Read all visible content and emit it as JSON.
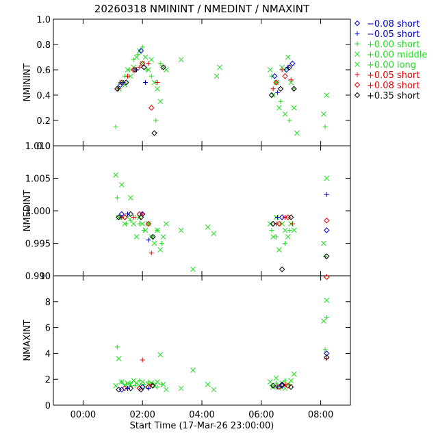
{
  "chart_data": {
    "type": "scatter",
    "title": "20260318  NMININT / NMEDINT / NMAXINT",
    "xlabel": "Start Time (17-Mar-26 23:00:00)",
    "x_unit": "hours after 17-Mar-26 23:00:00",
    "xlim": [
      0,
      10
    ],
    "xticks": [
      {
        "v": 1,
        "label": "00:00"
      },
      {
        "v": 3,
        "label": "02:00"
      },
      {
        "v": 5,
        "label": "04:00"
      },
      {
        "v": 7,
        "label": "06:00"
      },
      {
        "v": 9,
        "label": "08:00"
      }
    ],
    "legend": {
      "position": "top-right",
      "entries": [
        {
          "marker": "diamond",
          "label": "−0.08 short",
          "color": "#0000cc"
        },
        {
          "marker": "plus",
          "label": "−0.05 short",
          "color": "#0000cc"
        },
        {
          "marker": "plus",
          "label": "+0.00 short",
          "color": "#22dd22"
        },
        {
          "marker": "cross",
          "label": "+0.00 middle",
          "color": "#22dd22"
        },
        {
          "marker": "cross",
          "label": "+0.00 long",
          "color": "#22dd22"
        },
        {
          "marker": "plus",
          "label": "+0.05 short",
          "color": "#ee0000"
        },
        {
          "marker": "diamond",
          "label": "+0.08 short",
          "color": "#ee0000"
        },
        {
          "marker": "diamond",
          "label": "+0.35 short",
          "color": "#000000"
        }
      ]
    },
    "panels": [
      {
        "ylabel": "NMININT",
        "ylim": [
          0,
          1.0
        ],
        "yticks": [
          "0.0",
          "0.2",
          "0.4",
          "0.6",
          "0.8",
          "1.0"
        ],
        "ytick_values": [
          0,
          0.2,
          0.4,
          0.6,
          0.8,
          1.0
        ],
        "series": [
          {
            "label_ref": 4,
            "marker": "cross",
            "color": "#22dd22",
            "x": [
              2.2,
              2.3,
              2.4,
              2.5,
              2.6,
              2.7,
              2.8,
              2.9,
              3.0,
              3.1,
              3.2,
              3.3,
              3.4,
              3.5,
              3.6,
              3.7,
              3.8,
              4.3,
              5.5,
              5.6,
              7.3,
              7.4,
              7.5,
              7.6,
              7.7,
              7.8,
              7.9,
              8.0,
              8.1,
              8.2,
              9.1,
              9.2
            ],
            "y": [
              0.45,
              0.5,
              0.48,
              0.6,
              0.55,
              0.62,
              0.7,
              0.75,
              0.65,
              0.7,
              0.6,
              0.68,
              0.5,
              0.45,
              0.35,
              0.62,
              0.6,
              0.68,
              0.55,
              0.62,
              0.6,
              0.4,
              0.5,
              0.3,
              0.62,
              0.25,
              0.7,
              0.5,
              0.3,
              0.1,
              0.25,
              0.4
            ]
          },
          {
            "label_ref": 2,
            "marker": "plus",
            "color": "#22dd22",
            "x": [
              2.1,
              2.25,
              2.4,
              2.55,
              2.7,
              2.85,
              3.0,
              3.15,
              3.3,
              3.45,
              3.6,
              7.35,
              7.5,
              7.65,
              7.8,
              7.95,
              8.1,
              9.15
            ],
            "y": [
              0.15,
              0.5,
              0.55,
              0.6,
              0.68,
              0.72,
              0.78,
              0.6,
              0.55,
              0.2,
              0.65,
              0.55,
              0.5,
              0.35,
              0.6,
              0.2,
              0.45,
              0.15
            ]
          },
          {
            "label_ref": 5,
            "marker": "plus",
            "color": "#ee0000",
            "x": [
              2.2,
              2.5,
              2.9,
              3.2,
              3.5,
              7.4,
              7.7,
              8.0
            ],
            "y": [
              0.45,
              0.55,
              0.62,
              0.65,
              0.5,
              0.45,
              0.6,
              0.52
            ]
          },
          {
            "label_ref": 6,
            "marker": "diamond",
            "color": "#ee0000",
            "x": [
              2.3,
              2.7,
              3.0,
              3.3,
              7.5,
              7.8
            ],
            "y": [
              0.5,
              0.6,
              0.65,
              0.3,
              0.5,
              0.55
            ]
          },
          {
            "label_ref": 0,
            "marker": "diamond",
            "color": "#0000cc",
            "x": [
              2.25,
              2.95,
              3.05,
              7.45,
              7.85,
              8.05
            ],
            "y": [
              0.48,
              0.75,
              0.62,
              0.55,
              0.6,
              0.65
            ]
          },
          {
            "label_ref": 1,
            "marker": "plus",
            "color": "#0000cc",
            "x": [
              2.35,
              2.8,
              3.1,
              7.55,
              7.9
            ],
            "y": [
              0.5,
              0.6,
              0.5,
              0.42,
              0.62
            ]
          },
          {
            "label_ref": 7,
            "marker": "diamond",
            "color": "#000000",
            "x": [
              2.15,
              2.45,
              2.75,
              3.05,
              3.4,
              3.7,
              7.35,
              7.65,
              7.95,
              8.1
            ],
            "y": [
              0.45,
              0.5,
              0.6,
              0.62,
              0.1,
              0.62,
              0.4,
              0.45,
              0.62,
              0.45
            ]
          }
        ]
      },
      {
        "ylabel": "NMEDINT",
        "ylim": [
          0.99,
          1.01
        ],
        "yticks": [
          "0.990",
          "0.995",
          "1.000",
          "1.005",
          "1.010"
        ],
        "ytick_values": [
          0.99,
          0.995,
          1.0,
          1.005,
          1.01
        ],
        "series": [
          {
            "label_ref": 4,
            "marker": "cross",
            "color": "#22dd22",
            "x": [
              2.1,
              2.2,
              2.3,
              2.4,
              2.5,
              2.6,
              2.7,
              2.8,
              2.9,
              3.0,
              3.1,
              3.2,
              3.3,
              3.4,
              3.5,
              3.6,
              3.7,
              3.8,
              4.3,
              4.7,
              5.2,
              5.4,
              7.3,
              7.4,
              7.5,
              7.6,
              7.7,
              7.8,
              7.9,
              8.0,
              8.1,
              9.1,
              9.2
            ],
            "y": [
              1.0055,
              0.999,
              1.004,
              0.998,
              0.999,
              1.002,
              0.998,
              0.996,
              0.999,
              0.998,
              0.997,
              0.998,
              0.996,
              0.995,
              0.997,
              0.994,
              0.996,
              0.998,
              0.997,
              0.991,
              0.9975,
              0.9965,
              0.998,
              0.996,
              0.999,
              0.994,
              0.998,
              0.997,
              0.996,
              0.998,
              0.997,
              0.995,
              1.005
            ]
          },
          {
            "label_ref": 2,
            "marker": "plus",
            "color": "#22dd22",
            "x": [
              2.15,
              2.3,
              2.45,
              2.6,
              2.75,
              2.9,
              3.05,
              3.2,
              3.35,
              3.5,
              3.65,
              7.35,
              7.5,
              7.65,
              7.8,
              7.95,
              9.15
            ],
            "y": [
              1.002,
              0.999,
              0.998,
              0.9985,
              0.999,
              0.998,
              0.997,
              0.998,
              0.996,
              0.997,
              0.995,
              0.997,
              0.996,
              0.998,
              0.995,
              0.997,
              0.993
            ]
          },
          {
            "label_ref": 5,
            "marker": "plus",
            "color": "#ee0000",
            "x": [
              2.3,
              2.7,
              3.0,
              3.3,
              7.5,
              7.8,
              8.05
            ],
            "y": [
              0.999,
              0.999,
              0.9995,
              0.9935,
              0.998,
              0.999,
              0.998
            ]
          },
          {
            "label_ref": 6,
            "marker": "diamond",
            "color": "#ee0000",
            "x": [
              2.4,
              2.9,
              3.2,
              7.6,
              7.9,
              9.2
            ],
            "y": [
              0.999,
              0.9995,
              0.998,
              0.998,
              0.999,
              0.9985
            ]
          },
          {
            "label_ref": 0,
            "marker": "diamond",
            "color": "#0000cc",
            "x": [
              2.3,
              3.0,
              7.7,
              9.2
            ],
            "y": [
              0.9995,
              0.9995,
              0.999,
              0.997
            ]
          },
          {
            "label_ref": 1,
            "marker": "plus",
            "color": "#0000cc",
            "x": [
              2.5,
              3.2,
              7.55,
              9.2
            ],
            "y": [
              0.9995,
              0.9955,
              0.999,
              1.0025
            ]
          },
          {
            "label_ref": 7,
            "marker": "diamond",
            "color": "#000000",
            "x": [
              2.2,
              2.6,
              2.95,
              3.35,
              7.4,
              7.7,
              8.0,
              9.2
            ],
            "y": [
              0.999,
              0.9995,
              0.999,
              0.996,
              0.998,
              0.991,
              0.999,
              0.993
            ]
          }
        ]
      },
      {
        "ylabel": "NMAXINT",
        "ylim": [
          0,
          10
        ],
        "yticks": [
          "0",
          "2",
          "4",
          "6",
          "8",
          "10"
        ],
        "ytick_values": [
          0,
          2,
          4,
          6,
          8,
          10
        ],
        "series": [
          {
            "label_ref": 4,
            "marker": "cross",
            "color": "#22dd22",
            "x": [
              2.1,
              2.2,
              2.3,
              2.4,
              2.5,
              2.6,
              2.7,
              2.8,
              2.9,
              3.0,
              3.1,
              3.2,
              3.3,
              3.4,
              3.5,
              3.6,
              3.7,
              3.8,
              4.3,
              4.7,
              5.2,
              5.4,
              7.3,
              7.4,
              7.5,
              7.6,
              7.7,
              7.8,
              7.9,
              8.0,
              8.1,
              9.1,
              9.2
            ],
            "y": [
              1.5,
              3.6,
              1.8,
              1.5,
              1.7,
              1.6,
              1.9,
              1.7,
              1.5,
              1.8,
              1.4,
              1.6,
              1.7,
              1.5,
              1.8,
              3.9,
              1.6,
              1.2,
              1.3,
              2.7,
              1.6,
              1.2,
              1.8,
              1.4,
              2.1,
              1.5,
              1.7,
              1.3,
              1.6,
              1.9,
              2.4,
              6.5,
              8.1
            ]
          },
          {
            "label_ref": 2,
            "marker": "plus",
            "color": "#22dd22",
            "x": [
              2.15,
              2.3,
              2.45,
              2.6,
              2.75,
              2.9,
              3.05,
              3.2,
              3.35,
              3.5,
              3.65,
              7.35,
              7.5,
              7.65,
              7.8,
              7.95,
              9.15,
              9.2
            ],
            "y": [
              4.5,
              1.8,
              1.6,
              1.7,
              1.5,
              1.9,
              1.6,
              1.8,
              1.7,
              1.4,
              1.6,
              1.5,
              1.7,
              1.3,
              1.9,
              1.6,
              4.3,
              6.8
            ]
          },
          {
            "label_ref": 5,
            "marker": "plus",
            "color": "#ee0000",
            "x": [
              2.5,
              3.0,
              3.3,
              7.5,
              7.8,
              9.2
            ],
            "y": [
              1.3,
              3.5,
              1.6,
              1.4,
              1.6,
              3.6
            ]
          },
          {
            "label_ref": 6,
            "marker": "diamond",
            "color": "#ee0000",
            "x": [
              2.4,
              2.9,
              3.2,
              7.6,
              7.9,
              9.2
            ],
            "y": [
              1.3,
              1.3,
              1.4,
              1.4,
              1.5,
              9.9
            ]
          },
          {
            "label_ref": 0,
            "marker": "diamond",
            "color": "#0000cc",
            "x": [
              2.3,
              3.0,
              7.7,
              9.2
            ],
            "y": [
              1.2,
              1.4,
              1.5,
              4.0
            ]
          },
          {
            "label_ref": 1,
            "marker": "plus",
            "color": "#0000cc",
            "x": [
              2.5,
              3.2,
              7.55
            ],
            "y": [
              1.3,
              1.3,
              1.4
            ]
          },
          {
            "label_ref": 7,
            "marker": "diamond",
            "color": "#000000",
            "x": [
              2.2,
              2.6,
              2.95,
              3.35,
              7.4,
              7.7,
              8.0,
              9.2
            ],
            "y": [
              1.2,
              1.3,
              1.2,
              1.5,
              1.5,
              1.6,
              1.4,
              3.7
            ]
          }
        ]
      }
    ]
  }
}
